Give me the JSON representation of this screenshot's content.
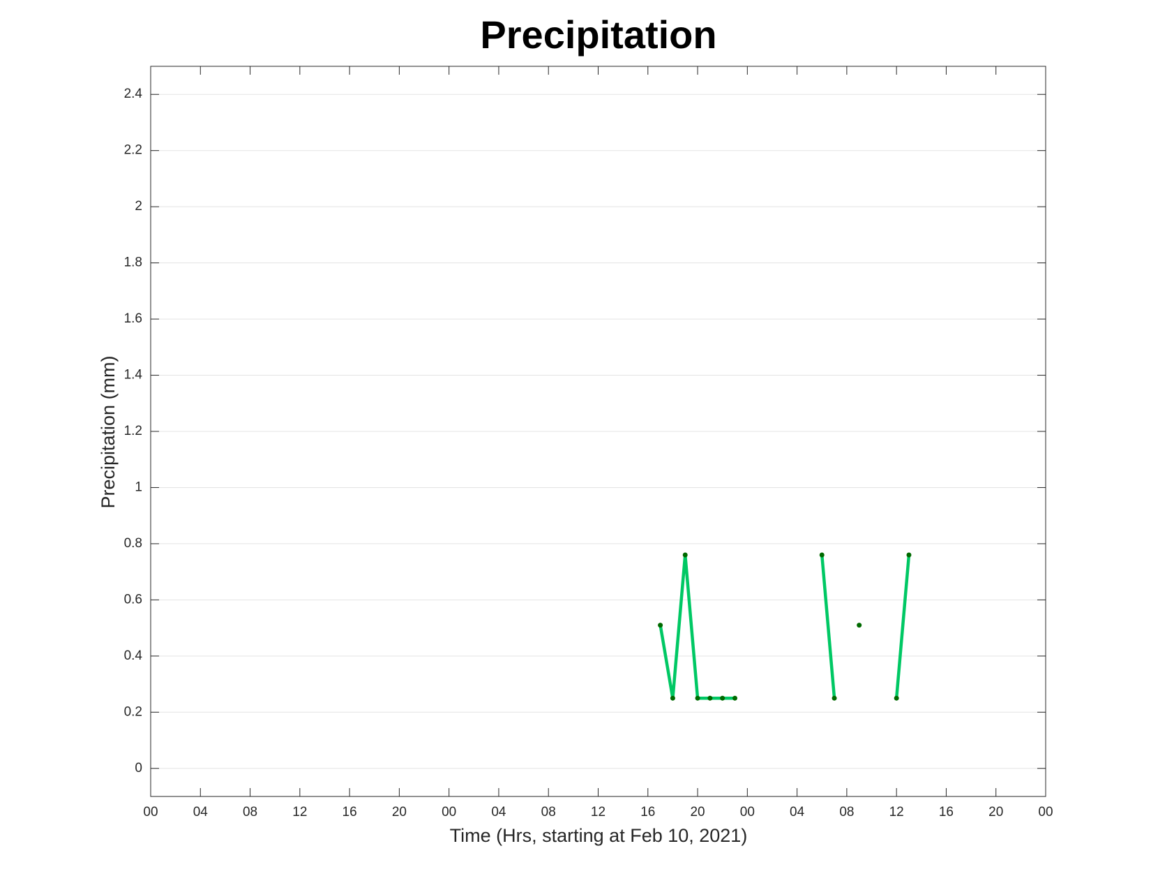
{
  "chart_data": {
    "type": "line",
    "title": "Precipitation",
    "xlabel": "Time (Hrs, starting at Feb 10, 2021)",
    "ylabel": "Precipitation (mm)",
    "x": [
      41,
      42,
      43,
      44,
      45,
      46,
      47,
      48,
      54,
      55,
      56,
      57,
      58,
      60,
      61
    ],
    "values": [
      0.51,
      0.25,
      0.76,
      0.25,
      0.25,
      0.25,
      0.25,
      null,
      0.76,
      0.25,
      null,
      0.51,
      null,
      0.25,
      0.76
    ],
    "color": "#00c864",
    "marker_color": "#006a00",
    "xlim": [
      0,
      72
    ],
    "xticks": [
      {
        "value": 0,
        "label": "00"
      },
      {
        "value": 4,
        "label": "04"
      },
      {
        "value": 8,
        "label": "08"
      },
      {
        "value": 12,
        "label": "12"
      },
      {
        "value": 16,
        "label": "16"
      },
      {
        "value": 20,
        "label": "20"
      },
      {
        "value": 24,
        "label": "00"
      },
      {
        "value": 28,
        "label": "04"
      },
      {
        "value": 32,
        "label": "08"
      },
      {
        "value": 36,
        "label": "12"
      },
      {
        "value": 40,
        "label": "16"
      },
      {
        "value": 44,
        "label": "20"
      },
      {
        "value": 48,
        "label": "00"
      },
      {
        "value": 52,
        "label": "04"
      },
      {
        "value": 56,
        "label": "08"
      },
      {
        "value": 60,
        "label": "12"
      },
      {
        "value": 64,
        "label": "16"
      },
      {
        "value": 68,
        "label": "20"
      },
      {
        "value": 72,
        "label": "00"
      }
    ],
    "ylim": [
      -0.1,
      2.5
    ],
    "yticks": [
      0,
      0.2,
      0.4,
      0.6,
      0.8,
      1,
      1.2,
      1.4,
      1.6,
      1.8,
      2,
      2.2,
      2.4
    ],
    "ygrid": true
  }
}
